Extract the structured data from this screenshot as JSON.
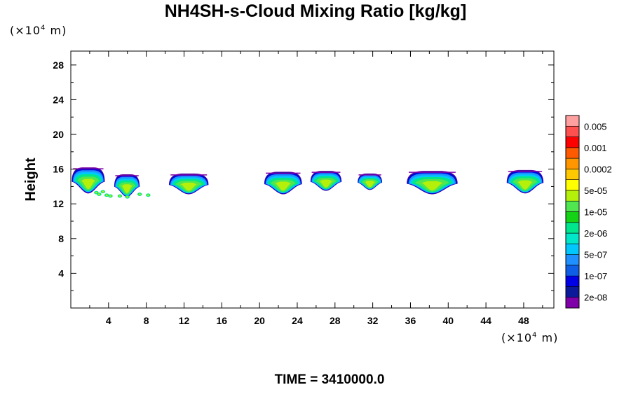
{
  "chart_data": {
    "type": "heatmap",
    "title": "NH4SH-s-Cloud Mixing Ratio [kg/kg]",
    "ylabel": "Height",
    "x_unit_prefix": "(×10",
    "x_unit_exp": "4",
    "x_unit_suffix": " m)",
    "y_unit_prefix": "(×10",
    "y_unit_exp": "4",
    "y_unit_suffix": " m)",
    "xlim": [
      0,
      51.2
    ],
    "ylim": [
      0,
      29.6
    ],
    "x_ticks": [
      4,
      8,
      12,
      16,
      20,
      24,
      28,
      32,
      36,
      40,
      44,
      48
    ],
    "x_tick_labels": [
      "4",
      "8",
      "12",
      "16",
      "20",
      "24",
      "28",
      "32",
      "36",
      "40",
      "44",
      "48"
    ],
    "y_ticks": [
      4,
      8,
      12,
      16,
      20,
      24,
      28
    ],
    "y_tick_labels": [
      "4",
      "8",
      "12",
      "16",
      "20",
      "24",
      "28"
    ],
    "colorbar": {
      "colors": [
        "#7f00a8",
        "#0a1a9a",
        "#0000e6",
        "#0f5fe6",
        "#1e90ff",
        "#00c8ff",
        "#00e6c8",
        "#00e68c",
        "#14d214",
        "#50e650",
        "#b4f00a",
        "#ffff00",
        "#ffc800",
        "#ff9600",
        "#ff5a00",
        "#ff0000",
        "#ff5050",
        "#ffa0a0"
      ],
      "labels": [
        "2e-08",
        "1e-07",
        "5e-07",
        "2e-06",
        "1e-05",
        "5e-05",
        "0.0002",
        "0.001",
        "0.005"
      ]
    },
    "clouds": [
      {
        "x0": 0.1,
        "x1": 3.6,
        "bottom": 13.2,
        "top": 16.2,
        "peak": "5e-05"
      },
      {
        "x0": 4.6,
        "x1": 7.3,
        "bottom": 12.8,
        "top": 15.4,
        "peak": "5e-05"
      },
      {
        "x0": 10.4,
        "x1": 14.6,
        "bottom": 13.1,
        "top": 15.5,
        "peak": "5e-05"
      },
      {
        "x0": 20.5,
        "x1": 24.5,
        "bottom": 13.1,
        "top": 15.7,
        "peak": "5e-05"
      },
      {
        "x0": 25.4,
        "x1": 28.7,
        "bottom": 13.5,
        "top": 15.8,
        "peak": "5e-05"
      },
      {
        "x0": 30.4,
        "x1": 33.0,
        "bottom": 13.6,
        "top": 15.5,
        "peak": "5e-05"
      },
      {
        "x0": 35.6,
        "x1": 41.0,
        "bottom": 13.1,
        "top": 15.8,
        "peak": "5e-05"
      },
      {
        "x0": 46.2,
        "x1": 50.1,
        "bottom": 13.2,
        "top": 15.9,
        "peak": "5e-05"
      }
    ],
    "specks": [
      {
        "x": 2.7,
        "y": 13.3
      },
      {
        "x": 3.0,
        "y": 13.1
      },
      {
        "x": 3.4,
        "y": 13.4
      },
      {
        "x": 3.8,
        "y": 13.0
      },
      {
        "x": 4.2,
        "y": 12.9
      },
      {
        "x": 5.2,
        "y": 12.9
      },
      {
        "x": 6.0,
        "y": 12.8
      },
      {
        "x": 7.3,
        "y": 13.1
      },
      {
        "x": 8.2,
        "y": 13.0
      }
    ]
  },
  "footer": {
    "time_label": "TIME = 3410000.0"
  },
  "colors": {
    "frame": "#000000",
    "background": "#ffffff"
  }
}
